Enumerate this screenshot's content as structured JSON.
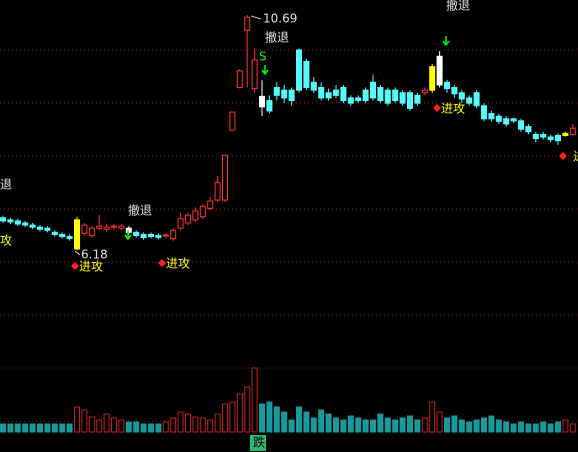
{
  "chart_data": {
    "type": "candlestick",
    "candles": [
      [
        6.8,
        6.84,
        6.7,
        6.74
      ],
      [
        6.76,
        6.8,
        6.68,
        6.72
      ],
      [
        6.74,
        6.78,
        6.64,
        6.68
      ],
      [
        6.7,
        6.74,
        6.62,
        6.66
      ],
      [
        6.66,
        6.7,
        6.58,
        6.62
      ],
      [
        6.62,
        6.66,
        6.54,
        6.58
      ],
      [
        6.6,
        6.64,
        6.52,
        6.56
      ],
      [
        6.52,
        6.56,
        6.44,
        6.48
      ],
      [
        6.48,
        6.52,
        6.4,
        6.44
      ],
      [
        6.44,
        6.48,
        6.36,
        6.4
      ],
      [
        6.2,
        6.82,
        6.18,
        6.76
      ],
      [
        6.5,
        6.7,
        6.46,
        6.66
      ],
      [
        6.46,
        6.64,
        6.42,
        6.6
      ],
      [
        6.6,
        6.85,
        6.56,
        6.64
      ],
      [
        6.58,
        6.68,
        6.54,
        6.62
      ],
      [
        6.62,
        6.68,
        6.58,
        6.64
      ],
      [
        6.6,
        6.68,
        6.56,
        6.64
      ],
      [
        6.6,
        6.64,
        6.48,
        6.52
      ],
      [
        6.52,
        6.56,
        6.42,
        6.46
      ],
      [
        6.48,
        6.52,
        6.38,
        6.42
      ],
      [
        6.48,
        6.52,
        6.4,
        6.44
      ],
      [
        6.46,
        6.5,
        6.38,
        6.42
      ],
      [
        6.45,
        6.5,
        6.42,
        6.47
      ],
      [
        6.4,
        6.6,
        6.36,
        6.56
      ],
      [
        6.6,
        6.9,
        6.56,
        6.78
      ],
      [
        6.7,
        6.88,
        6.66,
        6.85
      ],
      [
        6.76,
        7.0,
        6.72,
        6.93
      ],
      [
        6.82,
        7.06,
        6.78,
        7.02
      ],
      [
        6.98,
        7.2,
        6.94,
        7.12
      ],
      [
        7.14,
        7.6,
        7.1,
        7.48
      ],
      [
        7.14,
        8.0,
        7.1,
        8.0
      ],
      [
        8.48,
        8.83,
        8.48,
        8.83
      ],
      [
        9.3,
        9.65,
        9.28,
        9.62
      ],
      [
        10.4,
        10.69,
        9.3,
        10.65
      ],
      [
        9.28,
        10.05,
        9.2,
        9.83
      ],
      [
        9.13,
        9.44,
        8.75,
        8.93
      ],
      [
        9.05,
        9.15,
        8.8,
        8.85
      ],
      [
        9.3,
        9.4,
        9.05,
        9.15
      ],
      [
        9.25,
        9.35,
        9.0,
        9.1
      ],
      [
        9.25,
        9.3,
        8.95,
        9.05
      ],
      [
        10.02,
        10.05,
        9.2,
        9.25
      ],
      [
        9.8,
        9.85,
        9.25,
        9.3
      ],
      [
        9.4,
        9.5,
        9.2,
        9.25
      ],
      [
        9.3,
        9.4,
        9.05,
        9.1
      ],
      [
        9.2,
        9.28,
        9.05,
        9.1
      ],
      [
        9.25,
        9.35,
        9.1,
        9.15
      ],
      [
        9.3,
        9.35,
        9.0,
        9.05
      ],
      [
        9.1,
        9.15,
        8.95,
        9.0
      ],
      [
        9.1,
        9.15,
        9.0,
        9.05
      ],
      [
        9.25,
        9.3,
        9.0,
        9.05
      ],
      [
        9.4,
        9.55,
        9.05,
        9.1
      ],
      [
        9.3,
        9.35,
        9.0,
        9.05
      ],
      [
        9.25,
        9.3,
        8.95,
        9.0
      ],
      [
        9.25,
        9.3,
        9.0,
        9.05
      ],
      [
        9.2,
        9.25,
        8.95,
        9.0
      ],
      [
        9.2,
        9.25,
        8.85,
        8.9
      ],
      [
        9.15,
        9.2,
        8.95,
        9.0
      ],
      [
        9.2,
        9.3,
        9.15,
        9.25
      ],
      [
        9.25,
        9.75,
        9.2,
        9.7
      ],
      [
        9.35,
        10.0,
        9.3,
        9.9
      ],
      [
        9.4,
        9.45,
        9.2,
        9.28
      ],
      [
        9.3,
        9.35,
        9.1,
        9.18
      ],
      [
        9.2,
        9.25,
        9.0,
        9.08
      ],
      [
        9.1,
        9.15,
        8.95,
        9.0
      ],
      [
        9.2,
        9.25,
        8.9,
        8.95
      ],
      [
        8.95,
        9.0,
        8.65,
        8.7
      ],
      [
        8.8,
        8.85,
        8.65,
        8.7
      ],
      [
        8.75,
        8.8,
        8.6,
        8.65
      ],
      [
        8.7,
        8.75,
        8.55,
        8.6
      ],
      [
        8.7,
        8.72,
        8.62,
        8.66
      ],
      [
        8.66,
        8.7,
        8.45,
        8.5
      ],
      [
        8.55,
        8.6,
        8.4,
        8.45
      ],
      [
        8.4,
        8.45,
        8.25,
        8.32
      ],
      [
        8.4,
        8.45,
        8.3,
        8.35
      ],
      [
        8.35,
        8.4,
        8.25,
        8.3
      ],
      [
        8.38,
        8.42,
        8.2,
        8.28
      ],
      [
        8.38,
        8.45,
        8.36,
        8.42
      ],
      [
        8.4,
        8.6,
        8.38,
        8.52
      ]
    ],
    "volumes": [
      8,
      8,
      8,
      8,
      8,
      8,
      8,
      8,
      8,
      8,
      25,
      22,
      15,
      12,
      18,
      14,
      12,
      10,
      10,
      8,
      8,
      8,
      10,
      14,
      20,
      18,
      15,
      14,
      12,
      18,
      28,
      30,
      38,
      45,
      64,
      28,
      30,
      25,
      20,
      12,
      25,
      20,
      14,
      22,
      18,
      14,
      12,
      16,
      14,
      12,
      12,
      18,
      14,
      12,
      14,
      16,
      12,
      14,
      30,
      20,
      14,
      16,
      12,
      10,
      12,
      14,
      16,
      12,
      10,
      8,
      10,
      8,
      8,
      10,
      8,
      10,
      12,
      8
    ],
    "ylim": [
      4.07,
      10.98
    ],
    "vlim": [
      0,
      64
    ],
    "up_color": "#ff3232",
    "down_color": "#54fcfc",
    "highlights": [
      {
        "index": 10,
        "color": "#ffff00"
      },
      {
        "index": 58,
        "color": "#ffff00"
      },
      {
        "index": 76,
        "color": "#ffff00"
      },
      {
        "index": 17,
        "color": "#ffffff"
      },
      {
        "index": 35,
        "color": "#ffffff"
      },
      {
        "index": 59,
        "color": "#ffffff"
      }
    ],
    "annotations": [
      "10.69",
      "6.18",
      "退",
      "撤退",
      "撤退",
      "撤退",
      "攻",
      "进攻",
      "进攻",
      "进攻",
      "进",
      "S",
      "跌"
    ]
  }
}
